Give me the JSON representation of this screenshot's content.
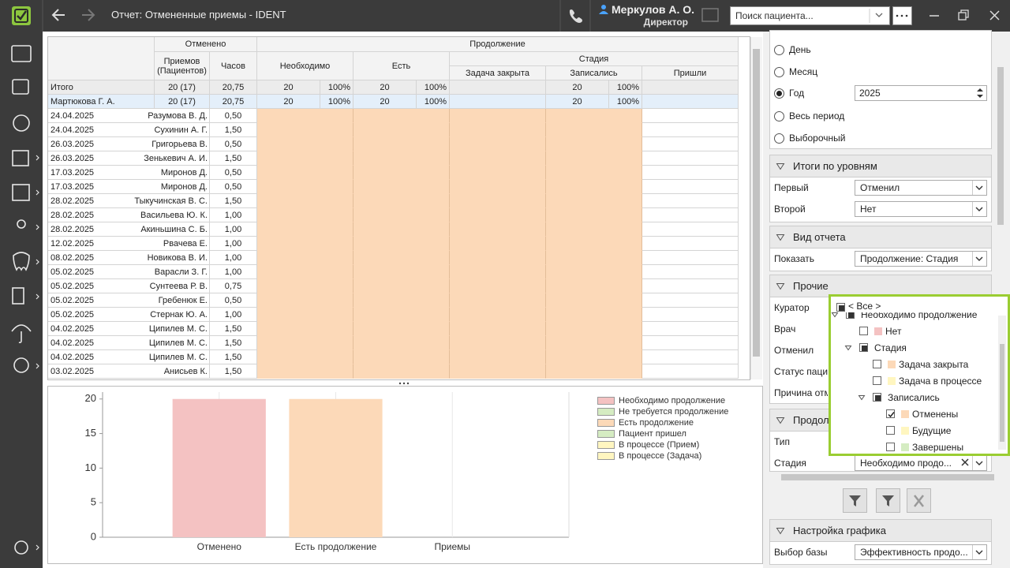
{
  "titlebar": {
    "title": "Отчет: Отмененные приемы - IDENT",
    "user": "Меркулов А. О.",
    "role": "Директор",
    "search_placeholder": "Поиск пациента..."
  },
  "table": {
    "headers": [
      "Отменено",
      "Продолжение",
      "Приемов (Пациентов)",
      "Часов",
      "Необходимо",
      "Есть",
      "Стадия",
      "Задача закрыта",
      "Записались",
      "Пришли"
    ],
    "totals": [
      {
        "label": "Итого",
        "cancelled": "20 (17)",
        "hours": "20,75",
        "need": "20",
        "need_pct": "100%",
        "have": "20",
        "have_pct": "100%",
        "recorded": "20",
        "recorded_pct": "100%"
      },
      {
        "label": "Мартюкова Г. А.",
        "cancelled": "20 (17)",
        "hours": "20,75",
        "need": "20",
        "need_pct": "100%",
        "have": "20",
        "have_pct": "100%",
        "recorded": "20",
        "recorded_pct": "100%"
      }
    ],
    "rows": [
      [
        "24.04.2025",
        "Разумова В. Д.",
        "0,50"
      ],
      [
        "24.04.2025",
        "Сухинин А. Г.",
        "1,50"
      ],
      [
        "26.03.2025",
        "Григорьева В.",
        "0,50"
      ],
      [
        "26.03.2025",
        "Зенькевич А. И.",
        "1,50"
      ],
      [
        "17.03.2025",
        "Миронов Д.",
        "0,50"
      ],
      [
        "17.03.2025",
        "Миронов Д.",
        "0,50"
      ],
      [
        "28.02.2025",
        "Тыкучинская В. С.",
        "1,50"
      ],
      [
        "28.02.2025",
        "Васильева Ю. К.",
        "1,00"
      ],
      [
        "28.02.2025",
        "Акиньшина С. Б.",
        "1,00"
      ],
      [
        "12.02.2025",
        "Рвачева Е.",
        "1,00"
      ],
      [
        "08.02.2025",
        "Новикова В. И.",
        "1,00"
      ],
      [
        "05.02.2025",
        "Варасли З. Г.",
        "1,00"
      ],
      [
        "05.02.2025",
        "Сунтеева Р. В.",
        "0,75"
      ],
      [
        "05.02.2025",
        "Гребенюк Е.",
        "0,50"
      ],
      [
        "05.02.2025",
        "Стернак Ю. А.",
        "1,00"
      ],
      [
        "04.02.2025",
        "Ципилев М. С.",
        "1,50"
      ],
      [
        "04.02.2025",
        "Ципилев М. С.",
        "1,50"
      ],
      [
        "04.02.2025",
        "Ципилев М. С.",
        "1,50"
      ],
      [
        "03.02.2025",
        "Анисьев К.",
        "1,50"
      ]
    ]
  },
  "chart_data": {
    "type": "bar",
    "categories": [
      "Отменено",
      "Есть продолжение",
      "Приемы"
    ],
    "series": [
      {
        "name": "Необходимо продолжение",
        "color": "#f4c2c2",
        "values": [
          20,
          null,
          null
        ]
      },
      {
        "name": "Не требуется продолжение",
        "color": "#d5ecc2",
        "values": [
          null,
          null,
          null
        ]
      },
      {
        "name": "Есть продолжение",
        "color": "#fcd9b8",
        "values": [
          null,
          20,
          null
        ]
      },
      {
        "name": "Пациент пришел",
        "color": "#d5ecc2",
        "values": [
          null,
          null,
          null
        ]
      },
      {
        "name": "В процессе (Прием)",
        "color": "#fff6c0",
        "values": [
          null,
          null,
          null
        ]
      },
      {
        "name": "В процессе (Задача)",
        "color": "#fff6c0",
        "values": [
          null,
          null,
          null
        ]
      }
    ],
    "ylim": [
      0,
      21
    ],
    "yticks": [
      0,
      5,
      10,
      15,
      20
    ]
  },
  "filters": {
    "period": {
      "options": [
        "День",
        "Месяц",
        "Год",
        "Весь период",
        "Выборочный"
      ],
      "selected": 2,
      "year": "2025"
    },
    "sections": [
      {
        "title": "Итоги по уровням",
        "fields": [
          {
            "label": "Первый",
            "value": "Отменил"
          },
          {
            "label": "Второй",
            "value": "Нет"
          }
        ]
      },
      {
        "title": "Вид отчета",
        "fields": [
          {
            "label": "Показать",
            "value": "Продолжение: Стадия"
          }
        ]
      },
      {
        "title": "Прочие",
        "fields": [
          {
            "label": "Куратор"
          },
          {
            "label": "Врач"
          },
          {
            "label": "Отменил"
          },
          {
            "label": "Статус паци"
          },
          {
            "label": "Причина отм"
          }
        ]
      },
      {
        "title": "Продол",
        "fields": [
          {
            "label": "Тип"
          },
          {
            "label": "Стадия",
            "value": "Необходимо продо..."
          }
        ]
      },
      {
        "title": "Настройка графика",
        "fields": [
          {
            "label": "Выбор базы",
            "value": "Эффективность продо..."
          }
        ]
      }
    ]
  },
  "popup": {
    "all": "< Все >",
    "items": [
      {
        "text": "Необходимо продолжение",
        "level": 0,
        "state": "partial",
        "expanded": true
      },
      {
        "text": "Нет",
        "level": 1,
        "state": "unchecked",
        "color": "#f4c2c2"
      },
      {
        "text": "Стадия",
        "level": 1,
        "state": "partial",
        "expanded": true
      },
      {
        "text": "Задача закрыта",
        "level": 2,
        "state": "unchecked",
        "color": "#fcd9b8"
      },
      {
        "text": "Задача в процессе",
        "level": 2,
        "state": "unchecked",
        "color": "#fff6c0"
      },
      {
        "text": "Записались",
        "level": 2,
        "state": "partial",
        "expanded": true
      },
      {
        "text": "Отменены",
        "level": 3,
        "state": "checked",
        "color": "#fcd9b8"
      },
      {
        "text": "Будущие",
        "level": 3,
        "state": "unchecked",
        "color": "#fff6c0"
      },
      {
        "text": "Завершены",
        "level": 3,
        "state": "unchecked",
        "color": "#d5ecc2"
      }
    ]
  }
}
